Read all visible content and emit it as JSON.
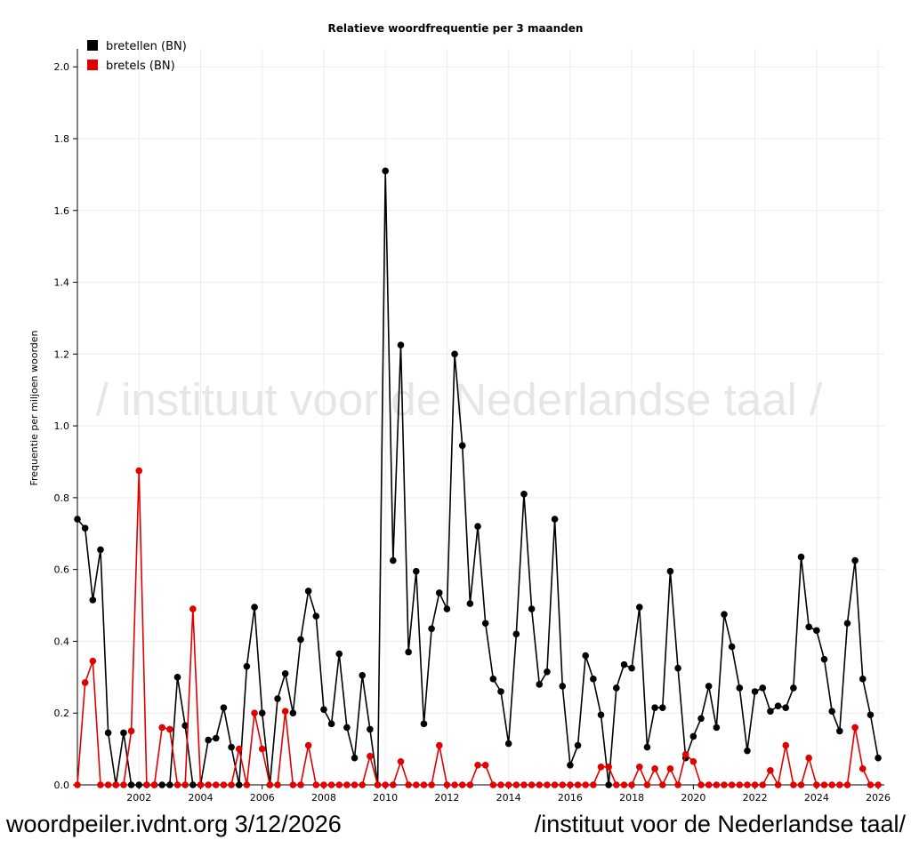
{
  "footer": {
    "left_text": "woordpeiler.ivdnt.org 3/12/2026",
    "right_text": "/instituut voor de Nederlandse taal/"
  },
  "chart_data": {
    "type": "line",
    "title": "Relatieve woordfrequentie per 3 maanden",
    "ylabel": "Frequentie per miljoen woorden",
    "xlabel": "",
    "watermark": "/ instituut voor de Nederlandse taal /",
    "xlim": [
      2000,
      2026.2
    ],
    "ylim": [
      0,
      2.05
    ],
    "grid": true,
    "legend_position": "top-left",
    "x_ticks": [
      "2002",
      "2004",
      "2006",
      "2008",
      "2010",
      "2012",
      "2014",
      "2016",
      "2018",
      "2020",
      "2022",
      "2024",
      "2026"
    ],
    "y_ticks": [
      "0.0",
      "0.2",
      "0.4",
      "0.6",
      "0.8",
      "1.0",
      "1.2",
      "1.4",
      "1.6",
      "1.8",
      "2.0"
    ],
    "x_start": 2000,
    "x_step": 0.25,
    "series": [
      {
        "name": "bretellen (BN)",
        "color": "#000000",
        "values": [
          0.74,
          0.715,
          0.515,
          0.655,
          0.145,
          0.0,
          0.145,
          0.0,
          0.0,
          0.0,
          0.0,
          0.0,
          0.0,
          0.3,
          0.165,
          0.0,
          0.0,
          0.125,
          0.13,
          0.215,
          0.105,
          0.0,
          0.33,
          0.495,
          0.2,
          0.0,
          0.24,
          0.31,
          0.2,
          0.405,
          0.54,
          0.47,
          0.21,
          0.17,
          0.365,
          0.16,
          0.075,
          0.305,
          0.155,
          0.0,
          1.71,
          0.625,
          1.225,
          0.37,
          0.595,
          0.17,
          0.435,
          0.535,
          0.49,
          1.2,
          0.945,
          0.505,
          0.72,
          0.45,
          0.295,
          0.26,
          0.115,
          0.42,
          0.81,
          0.49,
          0.28,
          0.315,
          0.74,
          0.275,
          0.055,
          0.11,
          0.36,
          0.295,
          0.195,
          0.0,
          0.27,
          0.335,
          0.325,
          0.495,
          0.105,
          0.215,
          0.215,
          0.595,
          0.325,
          0.075,
          0.135,
          0.185,
          0.275,
          0.16,
          0.475,
          0.385,
          0.27,
          0.095,
          0.26,
          0.27,
          0.205,
          0.22,
          0.215,
          0.27,
          0.635,
          0.44,
          0.43,
          0.35,
          0.205,
          0.15,
          0.45,
          0.625,
          0.295,
          0.195,
          0.075
        ]
      },
      {
        "name": "bretels (BN)",
        "color": "#e00000",
        "values": [
          0.0,
          0.285,
          0.345,
          0.0,
          0.0,
          0.0,
          0.0,
          0.15,
          0.875,
          0.0,
          0.0,
          0.16,
          0.155,
          0.0,
          0.0,
          0.49,
          0.0,
          0.0,
          0.0,
          0.0,
          0.0,
          0.1,
          0.0,
          0.2,
          0.1,
          0.0,
          0.0,
          0.205,
          0.0,
          0.0,
          0.11,
          0.0,
          0.0,
          0.0,
          0.0,
          0.0,
          0.0,
          0.0,
          0.08,
          0.0,
          0.0,
          0.0,
          0.065,
          0.0,
          0.0,
          0.0,
          0.0,
          0.11,
          0.0,
          0.0,
          0.0,
          0.0,
          0.055,
          0.055,
          0.0,
          0.0,
          0.0,
          0.0,
          0.0,
          0.0,
          0.0,
          0.0,
          0.0,
          0.0,
          0.0,
          0.0,
          0.0,
          0.0,
          0.05,
          0.05,
          0.0,
          0.0,
          0.0,
          0.05,
          0.0,
          0.045,
          0.0,
          0.045,
          0.0,
          0.085,
          0.065,
          0.0,
          0.0,
          0.0,
          0.0,
          0.0,
          0.0,
          0.0,
          0.0,
          0.0,
          0.04,
          0.0,
          0.11,
          0.0,
          0.0,
          0.075,
          0.0,
          0.0,
          0.0,
          0.0,
          0.0,
          0.16,
          0.045,
          0.0,
          0.0
        ]
      }
    ]
  }
}
